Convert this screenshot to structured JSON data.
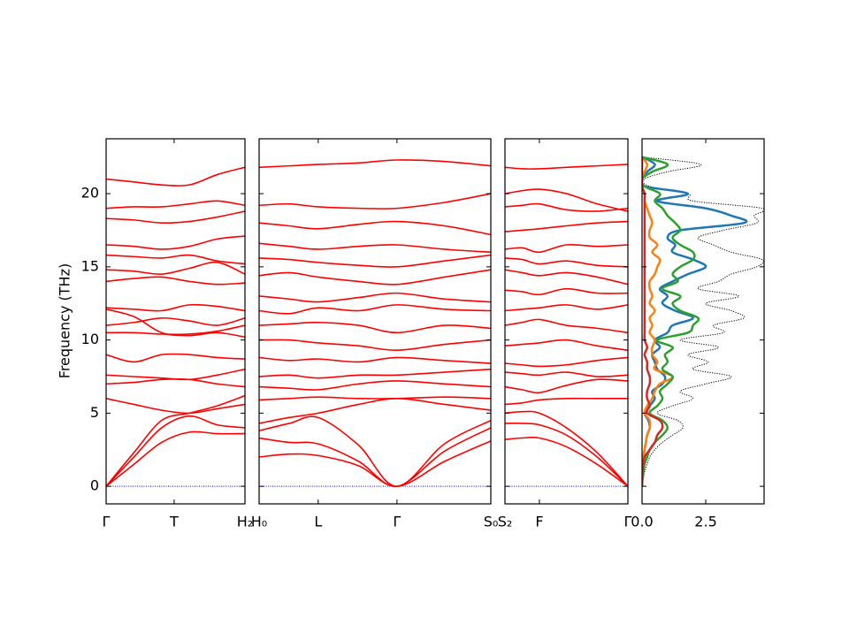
{
  "chart_data": [
    {
      "type": "line",
      "ylabel": "Frequency (THz)",
      "ylim": [
        -1.2,
        23.75
      ],
      "yticks": [
        0,
        5,
        10,
        15,
        20
      ],
      "xlim": [
        0,
        1
      ],
      "xticks": [
        {
          "value": 0,
          "label": "Γ"
        },
        {
          "value": 0.49,
          "label": "T"
        },
        {
          "value": 1,
          "label": "H₂"
        }
      ],
      "color": "#ff0000",
      "x": [
        0,
        0.2,
        0.4,
        0.6,
        0.8,
        1
      ],
      "series": [
        {
          "color": "#0000ff",
          "dash": "dotted",
          "values": [
            0,
            0,
            0,
            0,
            0,
            0
          ]
        },
        {
          "values": [
            0,
            1.5,
            3,
            3.7,
            3.6,
            3.6
          ]
        },
        {
          "values": [
            0,
            2,
            4,
            4.8,
            4.2,
            4.0
          ]
        },
        {
          "values": [
            0,
            2.3,
            4.5,
            5.0,
            5.5,
            6.2
          ]
        },
        {
          "values": [
            6.0,
            5.6,
            5.2,
            5.0,
            5.3,
            5.6
          ]
        },
        {
          "values": [
            7.0,
            7.1,
            7.3,
            7.3,
            7.0,
            6.8
          ]
        },
        {
          "values": [
            7.6,
            7.5,
            7.4,
            7.3,
            7.6,
            8.0
          ]
        },
        {
          "values": [
            9.0,
            8.5,
            9.0,
            9.0,
            8.8,
            8.7
          ]
        },
        {
          "values": [
            10.5,
            10.5,
            10.4,
            10.4,
            10.6,
            11.0
          ]
        },
        {
          "values": [
            12.1,
            11.6,
            10.5,
            10.3,
            10.5,
            10.2
          ]
        },
        {
          "values": [
            11.0,
            11.2,
            11.5,
            11.3,
            11.0,
            11.5
          ]
        },
        {
          "values": [
            12.2,
            12.1,
            12.0,
            12.4,
            12.3,
            12.0
          ]
        },
        {
          "values": [
            14.0,
            14.2,
            14.3,
            14.0,
            13.8,
            13.9
          ]
        },
        {
          "values": [
            14.8,
            14.7,
            14.5,
            14.9,
            15.3,
            14.5
          ]
        },
        {
          "values": [
            15.8,
            15.7,
            15.6,
            15.8,
            15.4,
            15.2
          ]
        },
        {
          "values": [
            16.5,
            16.4,
            16.2,
            16.4,
            16.9,
            17.1
          ]
        },
        {
          "values": [
            18.3,
            18.2,
            18.0,
            18.1,
            18.4,
            18.8
          ]
        },
        {
          "values": [
            19.0,
            19.1,
            19.1,
            19.3,
            19.5,
            19.2
          ]
        },
        {
          "values": [
            21.0,
            20.8,
            20.6,
            20.6,
            21.3,
            21.8
          ]
        }
      ]
    },
    {
      "type": "line",
      "ylim": [
        -1.2,
        23.75
      ],
      "xlim": [
        0,
        1
      ],
      "xticks": [
        {
          "value": 0,
          "label": "H₀"
        },
        {
          "value": 0.255,
          "label": "L"
        },
        {
          "value": 0.595,
          "label": "Γ"
        },
        {
          "value": 1,
          "label": "S₀"
        }
      ],
      "color": "#ff0000",
      "x": [
        0,
        0.13,
        0.255,
        0.43,
        0.595,
        0.8,
        1
      ],
      "series": [
        {
          "color": "#0000ff",
          "dash": "dotted",
          "values": [
            0,
            0,
            0,
            0,
            0,
            0,
            0
          ]
        },
        {
          "values": [
            2.0,
            2.2,
            2.1,
            1.4,
            0,
            1.7,
            3.1
          ]
        },
        {
          "values": [
            3.3,
            3.0,
            2.9,
            1.7,
            0,
            2.4,
            4.0
          ]
        },
        {
          "values": [
            3.8,
            4.3,
            4.7,
            2.8,
            0,
            2.9,
            4.5
          ]
        },
        {
          "values": [
            4.3,
            4.7,
            5.0,
            5.6,
            6.0,
            5.6,
            5.2
          ]
        },
        {
          "values": [
            5.9,
            6.0,
            6.1,
            6.0,
            6.0,
            6.1,
            6.0
          ]
        },
        {
          "values": [
            6.8,
            6.7,
            6.6,
            7.0,
            7.2,
            7.0,
            6.8
          ]
        },
        {
          "values": [
            7.5,
            7.6,
            7.4,
            7.6,
            7.6,
            7.8,
            8.0
          ]
        },
        {
          "values": [
            8.8,
            8.6,
            8.7,
            8.5,
            8.8,
            8.6,
            8.4
          ]
        },
        {
          "values": [
            10.0,
            10.0,
            9.8,
            9.6,
            9.3,
            9.7,
            10.0
          ]
        },
        {
          "values": [
            11.0,
            11.1,
            11.2,
            11.0,
            10.5,
            11.0,
            10.8
          ]
        },
        {
          "values": [
            12.0,
            11.8,
            12.2,
            12.0,
            12.4,
            12.1,
            12.0
          ]
        },
        {
          "values": [
            13.0,
            12.8,
            12.6,
            12.9,
            13.2,
            12.8,
            12.6
          ]
        },
        {
          "values": [
            14.4,
            14.6,
            14.3,
            14.0,
            13.8,
            14.3,
            14.8
          ]
        },
        {
          "values": [
            15.6,
            15.5,
            15.3,
            15.1,
            15.0,
            15.4,
            15.8
          ]
        },
        {
          "values": [
            16.6,
            16.4,
            16.2,
            16.4,
            16.5,
            16.2,
            16.0
          ]
        },
        {
          "values": [
            18.0,
            17.8,
            17.6,
            17.9,
            18.1,
            17.8,
            17.2
          ]
        },
        {
          "values": [
            19.2,
            19.3,
            19.1,
            19.0,
            19.0,
            19.4,
            20.0
          ]
        },
        {
          "values": [
            21.8,
            21.9,
            22.0,
            22.1,
            22.3,
            22.2,
            21.9
          ]
        }
      ]
    },
    {
      "type": "line",
      "ylim": [
        -1.2,
        23.75
      ],
      "xlim": [
        0,
        1
      ],
      "xticks": [
        {
          "value": 0,
          "label": "S₂"
        },
        {
          "value": 0.28,
          "label": "F"
        },
        {
          "value": 1,
          "label": "Γ"
        }
      ],
      "color": "#ff0000",
      "x": [
        0,
        0.14,
        0.28,
        0.5,
        0.75,
        1
      ],
      "series": [
        {
          "color": "#0000ff",
          "dash": "dotted",
          "values": [
            0,
            0,
            0,
            0,
            0,
            0
          ]
        },
        {
          "values": [
            3.2,
            3.3,
            3.3,
            2.7,
            1.5,
            0
          ]
        },
        {
          "values": [
            4.3,
            4.3,
            4.2,
            3.5,
            2,
            0
          ]
        },
        {
          "values": [
            5.0,
            5.1,
            5.0,
            4.0,
            2.3,
            0
          ]
        },
        {
          "values": [
            5.6,
            5.7,
            5.9,
            6.0,
            6.0,
            6.0
          ]
        },
        {
          "values": [
            6.8,
            6.6,
            6.4,
            6.9,
            7.3,
            7.2
          ]
        },
        {
          "values": [
            7.8,
            7.7,
            7.6,
            7.8,
            7.5,
            7.6
          ]
        },
        {
          "values": [
            8.4,
            8.3,
            8.2,
            8.3,
            8.6,
            8.8
          ]
        },
        {
          "values": [
            9.6,
            9.7,
            9.8,
            10.0,
            9.6,
            9.3
          ]
        },
        {
          "values": [
            11.0,
            11.2,
            11.4,
            11.0,
            10.8,
            10.5
          ]
        },
        {
          "values": [
            12.0,
            12.1,
            12.2,
            12.4,
            12.1,
            12.4
          ]
        },
        {
          "values": [
            13.4,
            13.3,
            13.1,
            13.5,
            13.2,
            13.2
          ]
        },
        {
          "values": [
            14.8,
            14.6,
            14.4,
            14.6,
            14.3,
            13.8
          ]
        },
        {
          "values": [
            15.6,
            15.5,
            15.2,
            15.4,
            15.1,
            15.0
          ]
        },
        {
          "values": [
            16.2,
            16.3,
            16.0,
            16.5,
            16.4,
            16.5
          ]
        },
        {
          "values": [
            17.4,
            17.5,
            17.6,
            17.8,
            18.0,
            18.1
          ]
        },
        {
          "values": [
            19.1,
            19.2,
            19.3,
            18.9,
            18.8,
            19.0
          ]
        },
        {
          "values": [
            20.0,
            20.2,
            20.3,
            20.0,
            19.3,
            18.8
          ]
        },
        {
          "values": [
            21.8,
            21.7,
            21.7,
            21.8,
            21.9,
            22.0
          ]
        }
      ]
    },
    {
      "type": "dos",
      "ylim": [
        -1.2,
        23.75
      ],
      "xlim": [
        0,
        4.79
      ],
      "xticks": [
        {
          "value": 0,
          "label": "0.0"
        },
        2.5
      ],
      "y": [
        0,
        0.5,
        1,
        1.5,
        2,
        2.5,
        3,
        3.5,
        4,
        4.5,
        5,
        5.5,
        6,
        6.5,
        7,
        7.5,
        8,
        8.5,
        9,
        9.5,
        10,
        10.5,
        11,
        11.5,
        12,
        12.5,
        13,
        13.5,
        14,
        14.5,
        15,
        15.5,
        16,
        16.5,
        17,
        17.5,
        18,
        18.5,
        19,
        19.5,
        20,
        20.5,
        21,
        21.5,
        22,
        22.5
      ],
      "series": [
        {
          "color": "#000000",
          "dash": "dotted",
          "values": [
            0,
            0.05,
            0.1,
            0.2,
            0.3,
            0.5,
            0.8,
            1.2,
            1.6,
            1.4,
            0.6,
            1.2,
            2.0,
            1.5,
            2.5,
            3.5,
            2.0,
            2.6,
            1.8,
            3.0,
            1.5,
            3.2,
            2.8,
            4.0,
            3.5,
            2.5,
            3.8,
            2.2,
            3.0,
            3.5,
            4.5,
            4.7,
            3.5,
            2.8,
            2.2,
            3.2,
            4.5,
            4.4,
            4.7,
            2.0,
            1.8,
            0.3,
            0.1,
            1.0,
            2.3,
            0
          ]
        },
        {
          "color": "#1f77b4",
          "values": [
            0,
            0,
            0.02,
            0.04,
            0.06,
            0.1,
            0.15,
            0.2,
            0.3,
            0.25,
            0.1,
            0.3,
            0.5,
            0.4,
            0.8,
            0.9,
            0.6,
            0.5,
            0.4,
            0.7,
            0.5,
            1.0,
            1.2,
            2.0,
            1.3,
            0.8,
            1.0,
            0.7,
            1.2,
            1.8,
            2.5,
            2.0,
            1.2,
            1.3,
            1.0,
            1.5,
            4.0,
            3.5,
            2.5,
            0.6,
            1.8,
            0.1,
            0,
            0.2,
            0.5,
            0
          ]
        },
        {
          "color": "#ff7f0e",
          "values": [
            0,
            0,
            0.02,
            0.03,
            0.05,
            0.1,
            0.15,
            0.2,
            0.3,
            0.3,
            0.1,
            0.2,
            0.4,
            0.5,
            0.7,
            1.2,
            0.5,
            0.6,
            0.4,
            0.4,
            0.5,
            0.3,
            0.4,
            0.3,
            0.5,
            0.3,
            0.4,
            0.3,
            0.3,
            0.5,
            0.6,
            0.7,
            0.4,
            0.6,
            0.3,
            0.3,
            0.4,
            0.3,
            0.2,
            0.1,
            0.1,
            0,
            0,
            0.1,
            0.2,
            0
          ]
        },
        {
          "color": "#2ca02c",
          "values": [
            0,
            0.02,
            0.05,
            0.1,
            0.2,
            0.3,
            0.5,
            0.8,
            1.0,
            0.8,
            0.3,
            0.6,
            0.8,
            0.7,
            1.0,
            1.2,
            0.8,
            1.0,
            0.9,
            1.2,
            0.6,
            1.8,
            2.0,
            2.2,
            1.5,
            1.2,
            1.5,
            0.8,
            1.4,
            1.2,
            1.5,
            2.0,
            2.0,
            1.5,
            1.2,
            1.5,
            1.3,
            1.0,
            0.8,
            0.5,
            0.7,
            0.1,
            0,
            0.4,
            1.0,
            0
          ]
        },
        {
          "color": "#d62728",
          "values": [
            0,
            0,
            0.02,
            0.05,
            0.1,
            0.3,
            0.5,
            0.6,
            0.8,
            0.7,
            0.2,
            0.3,
            0.2,
            0.2,
            0.3,
            0.3,
            0.2,
            0.2,
            0.1,
            0.2,
            0.1,
            0.1,
            0.1,
            0.1,
            0.1,
            0.1,
            0.1,
            0.1,
            0.1,
            0.1,
            0.1,
            0.1,
            0.1,
            0.1,
            0.1,
            0.1,
            0.1,
            0.1,
            0.1,
            0.1,
            0.1,
            0,
            0,
            0,
            0,
            0
          ]
        }
      ]
    }
  ]
}
